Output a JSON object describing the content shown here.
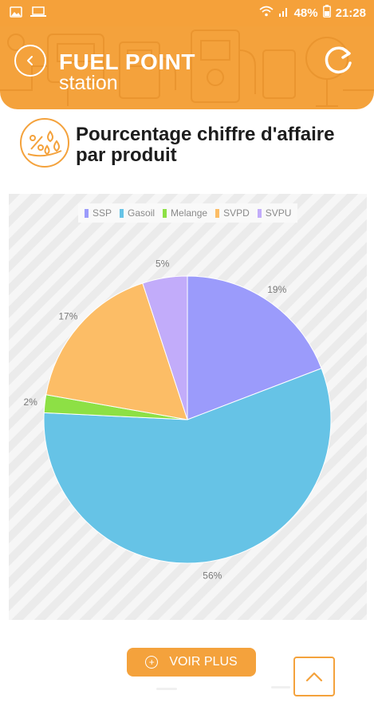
{
  "status_bar": {
    "battery": "48%",
    "time": "21:28",
    "left_icons": [
      "image-icon",
      "laptop-icon"
    ],
    "right_icons": [
      "wifi-icon",
      "signal-icon",
      "battery-icon"
    ]
  },
  "header": {
    "title": "FUEL POINT",
    "subtitle": "station",
    "back_icon": "chevron-left-icon",
    "refresh_icon": "refresh-icon"
  },
  "section": {
    "icon": "percent-drops-icon",
    "title": "Pourcentage chiffre d'affaire par produit"
  },
  "chart_data": {
    "type": "pie",
    "title": "",
    "legend": [
      "SSP",
      "Gasoil",
      "Melange",
      "SVPD",
      "SVPU"
    ],
    "legend_placement": "top",
    "series": [
      {
        "name": "SSP",
        "value": 19,
        "label": "19%",
        "color": "#9b9bfb"
      },
      {
        "name": "Gasoil",
        "value": 56,
        "label": "56%",
        "color": "#66c3e6"
      },
      {
        "name": "Melange",
        "value": 2,
        "label": "2%",
        "color": "#8de045"
      },
      {
        "name": "SVPD",
        "value": 17,
        "label": "17%",
        "color": "#fcbd66"
      },
      {
        "name": "SVPU",
        "value": 5,
        "label": "5%",
        "color": "#c2acfa"
      }
    ]
  },
  "actions": {
    "voir_plus": "VOIR PLUS",
    "scroll_top_icon": "chevron-up-icon"
  },
  "colors": {
    "accent": "#f4a23c",
    "text": "#1d1d1d"
  }
}
